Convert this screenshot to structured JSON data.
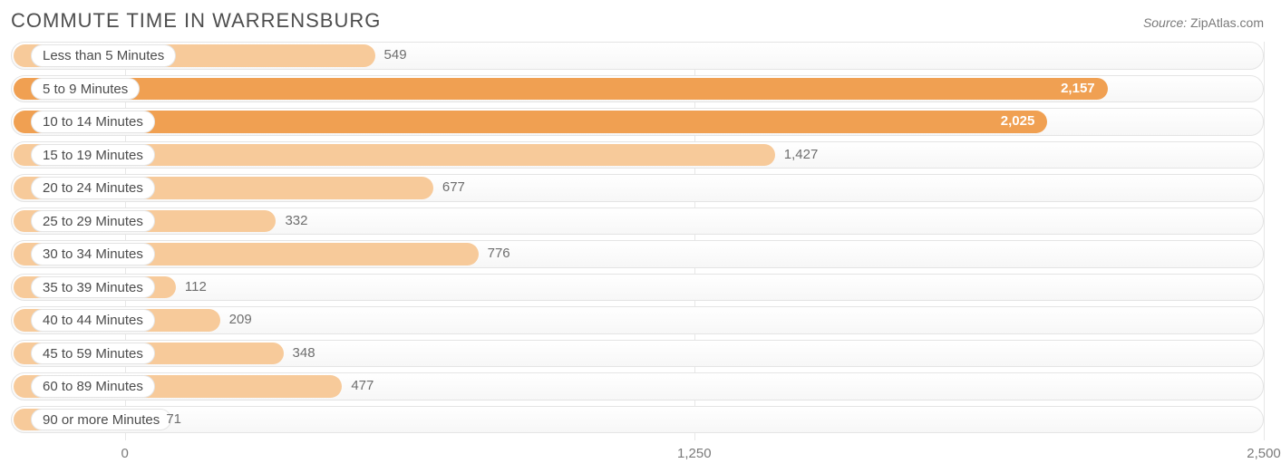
{
  "header": {
    "title": "Commute Time in Warrensburg",
    "source_label": "Source:",
    "source_site": "ZipAtlas.com"
  },
  "chart": {
    "type": "bar-horizontal",
    "x_min": -250,
    "x_max": 2500,
    "ticks": [
      {
        "value": 0,
        "label": "0"
      },
      {
        "value": 1250,
        "label": "1,250"
      },
      {
        "value": 2500,
        "label": "2,500"
      }
    ],
    "grid_color": "#e7e7e7",
    "track_border_color": "#e4e4e4",
    "track_bg_from": "#ffffff",
    "track_bg_to": "#f7f7f7",
    "value_label_color_outside": "#6e6e6e",
    "value_label_color_inside": "#ffffff",
    "category_label_color": "#4c4c4c",
    "label_fontsize": 15,
    "row_height": 30.5,
    "row_gap": 6,
    "bars": [
      {
        "label": "Less than 5 Minutes",
        "value": 549,
        "display": "549",
        "fill": "#f7ca9a",
        "value_inside": false
      },
      {
        "label": "5 to 9 Minutes",
        "value": 2157,
        "display": "2,157",
        "fill": "#f0a052",
        "value_inside": true
      },
      {
        "label": "10 to 14 Minutes",
        "value": 2025,
        "display": "2,025",
        "fill": "#f0a052",
        "value_inside": true
      },
      {
        "label": "15 to 19 Minutes",
        "value": 1427,
        "display": "1,427",
        "fill": "#f7ca9a",
        "value_inside": false
      },
      {
        "label": "20 to 24 Minutes",
        "value": 677,
        "display": "677",
        "fill": "#f7ca9a",
        "value_inside": false
      },
      {
        "label": "25 to 29 Minutes",
        "value": 332,
        "display": "332",
        "fill": "#f7ca9a",
        "value_inside": false
      },
      {
        "label": "30 to 34 Minutes",
        "value": 776,
        "display": "776",
        "fill": "#f7ca9a",
        "value_inside": false
      },
      {
        "label": "35 to 39 Minutes",
        "value": 112,
        "display": "112",
        "fill": "#f7ca9a",
        "value_inside": false
      },
      {
        "label": "40 to 44 Minutes",
        "value": 209,
        "display": "209",
        "fill": "#f7ca9a",
        "value_inside": false
      },
      {
        "label": "45 to 59 Minutes",
        "value": 348,
        "display": "348",
        "fill": "#f7ca9a",
        "value_inside": false
      },
      {
        "label": "60 to 89 Minutes",
        "value": 477,
        "display": "477",
        "fill": "#f7ca9a",
        "value_inside": false
      },
      {
        "label": "90 or more Minutes",
        "value": 71,
        "display": "71",
        "fill": "#f7ca9a",
        "value_inside": false
      }
    ]
  }
}
